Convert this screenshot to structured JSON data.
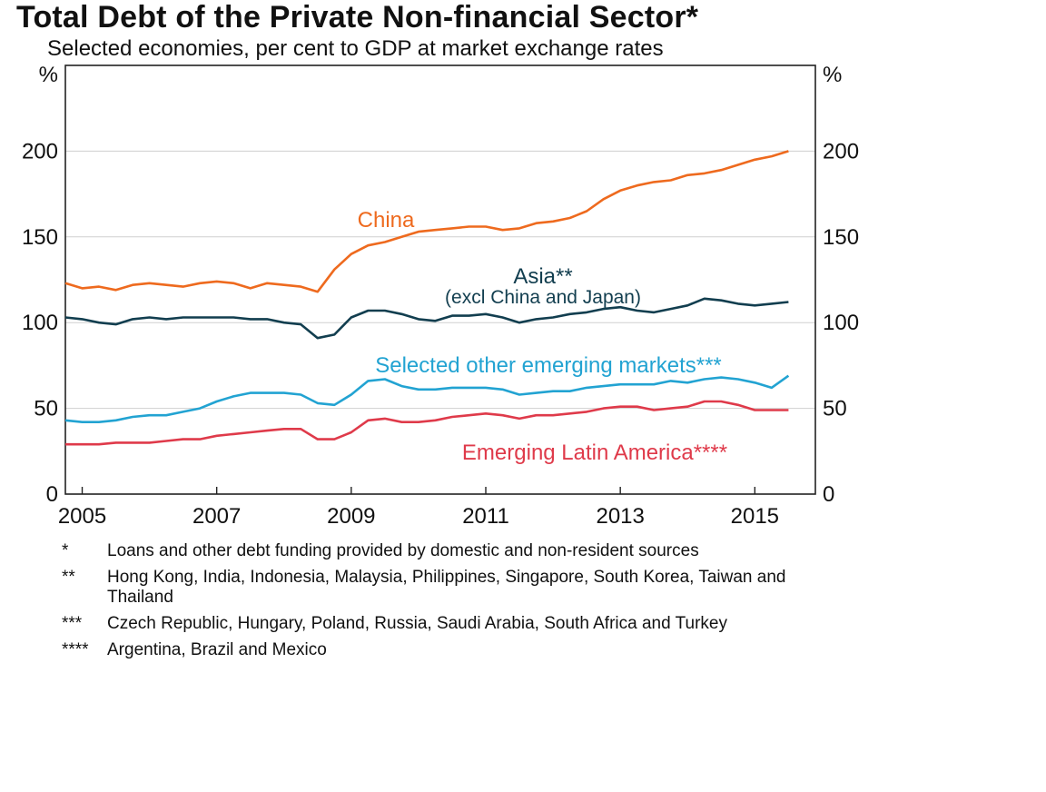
{
  "chart_data": {
    "type": "line",
    "title": "Total Debt of the Private Non-financial Sector*",
    "subtitle": "Selected economies, per cent to GDP at market exchange rates",
    "y_unit_left": "%",
    "y_unit_right": "%",
    "ylim": [
      0,
      250
    ],
    "yticks": [
      0,
      50,
      100,
      150,
      200
    ],
    "xlim": [
      2004.75,
      2015.9
    ],
    "xticks": [
      2005,
      2007,
      2009,
      2011,
      2013,
      2015
    ],
    "grid": true,
    "series": [
      {
        "name": "China",
        "color": "#ee6a1e",
        "x": [
          2004.75,
          2005.0,
          2005.25,
          2005.5,
          2005.75,
          2006.0,
          2006.25,
          2006.5,
          2006.75,
          2007.0,
          2007.25,
          2007.5,
          2007.75,
          2008.0,
          2008.25,
          2008.5,
          2008.75,
          2009.0,
          2009.25,
          2009.5,
          2009.75,
          2010.0,
          2010.25,
          2010.5,
          2010.75,
          2011.0,
          2011.25,
          2011.5,
          2011.75,
          2012.0,
          2012.25,
          2012.5,
          2012.75,
          2013.0,
          2013.25,
          2013.5,
          2013.75,
          2014.0,
          2014.25,
          2014.5,
          2014.75,
          2015.0,
          2015.25,
          2015.5
        ],
        "values": [
          123,
          120,
          121,
          119,
          122,
          123,
          122,
          121,
          123,
          124,
          123,
          120,
          123,
          122,
          121,
          118,
          131,
          140,
          145,
          147,
          150,
          153,
          154,
          155,
          156,
          156,
          154,
          155,
          158,
          159,
          161,
          165,
          172,
          177,
          180,
          182,
          183,
          186,
          187,
          189,
          192,
          195,
          197,
          200
        ]
      },
      {
        "name": "Asia**",
        "label_line2": "(excl China and Japan)",
        "color": "#123e4f",
        "x": [
          2004.75,
          2005.0,
          2005.25,
          2005.5,
          2005.75,
          2006.0,
          2006.25,
          2006.5,
          2006.75,
          2007.0,
          2007.25,
          2007.5,
          2007.75,
          2008.0,
          2008.25,
          2008.5,
          2008.75,
          2009.0,
          2009.25,
          2009.5,
          2009.75,
          2010.0,
          2010.25,
          2010.5,
          2010.75,
          2011.0,
          2011.25,
          2011.5,
          2011.75,
          2012.0,
          2012.25,
          2012.5,
          2012.75,
          2013.0,
          2013.25,
          2013.5,
          2013.75,
          2014.0,
          2014.25,
          2014.5,
          2014.75,
          2015.0,
          2015.25,
          2015.5
        ],
        "values": [
          103,
          102,
          100,
          99,
          102,
          103,
          102,
          103,
          103,
          103,
          103,
          102,
          102,
          100,
          99,
          91,
          93,
          103,
          107,
          107,
          105,
          102,
          101,
          104,
          104,
          105,
          103,
          100,
          102,
          103,
          105,
          106,
          108,
          109,
          107,
          106,
          108,
          110,
          114,
          113,
          111,
          110,
          111,
          112
        ]
      },
      {
        "name": "Selected other emerging markets***",
        "color": "#22a3d2",
        "x": [
          2004.75,
          2005.0,
          2005.25,
          2005.5,
          2005.75,
          2006.0,
          2006.25,
          2006.5,
          2006.75,
          2007.0,
          2007.25,
          2007.5,
          2007.75,
          2008.0,
          2008.25,
          2008.5,
          2008.75,
          2009.0,
          2009.25,
          2009.5,
          2009.75,
          2010.0,
          2010.25,
          2010.5,
          2010.75,
          2011.0,
          2011.25,
          2011.5,
          2011.75,
          2012.0,
          2012.25,
          2012.5,
          2012.75,
          2013.0,
          2013.25,
          2013.5,
          2013.75,
          2014.0,
          2014.25,
          2014.5,
          2014.75,
          2015.0,
          2015.25,
          2015.5
        ],
        "values": [
          43,
          42,
          42,
          43,
          45,
          46,
          46,
          48,
          50,
          54,
          57,
          59,
          59,
          59,
          58,
          53,
          52,
          58,
          66,
          67,
          63,
          61,
          61,
          62,
          62,
          62,
          61,
          58,
          59,
          60,
          60,
          62,
          63,
          64,
          64,
          64,
          66,
          65,
          67,
          68,
          67,
          65,
          62,
          69
        ]
      },
      {
        "name": "Emerging Latin America****",
        "color": "#df3a4a",
        "x": [
          2004.75,
          2005.0,
          2005.25,
          2005.5,
          2005.75,
          2006.0,
          2006.25,
          2006.5,
          2006.75,
          2007.0,
          2007.25,
          2007.5,
          2007.75,
          2008.0,
          2008.25,
          2008.5,
          2008.75,
          2009.0,
          2009.25,
          2009.5,
          2009.75,
          2010.0,
          2010.25,
          2010.5,
          2010.75,
          2011.0,
          2011.25,
          2011.5,
          2011.75,
          2012.0,
          2012.25,
          2012.5,
          2012.75,
          2013.0,
          2013.25,
          2013.5,
          2013.75,
          2014.0,
          2014.25,
          2014.5,
          2014.75,
          2015.0,
          2015.25,
          2015.5
        ],
        "values": [
          29,
          29,
          29,
          30,
          30,
          30,
          31,
          32,
          32,
          34,
          35,
          36,
          37,
          38,
          38,
          32,
          32,
          36,
          43,
          44,
          42,
          42,
          43,
          45,
          46,
          47,
          46,
          44,
          46,
          46,
          47,
          48,
          50,
          51,
          51,
          49,
          50,
          51,
          54,
          54,
          52,
          49,
          49,
          49
        ]
      }
    ]
  },
  "notes": [
    {
      "mark": "*",
      "text": "Loans and other debt funding provided by domestic and non-resident sources"
    },
    {
      "mark": "**",
      "text": "Hong Kong, India, Indonesia, Malaysia, Philippines, Singapore, South Korea, Taiwan and Thailand"
    },
    {
      "mark": "***",
      "text": "Czech Republic, Hungary, Poland, Russia, Saudi Arabia, South Africa and Turkey"
    },
    {
      "mark": "****",
      "text": "Argentina, Brazil and Mexico"
    }
  ]
}
